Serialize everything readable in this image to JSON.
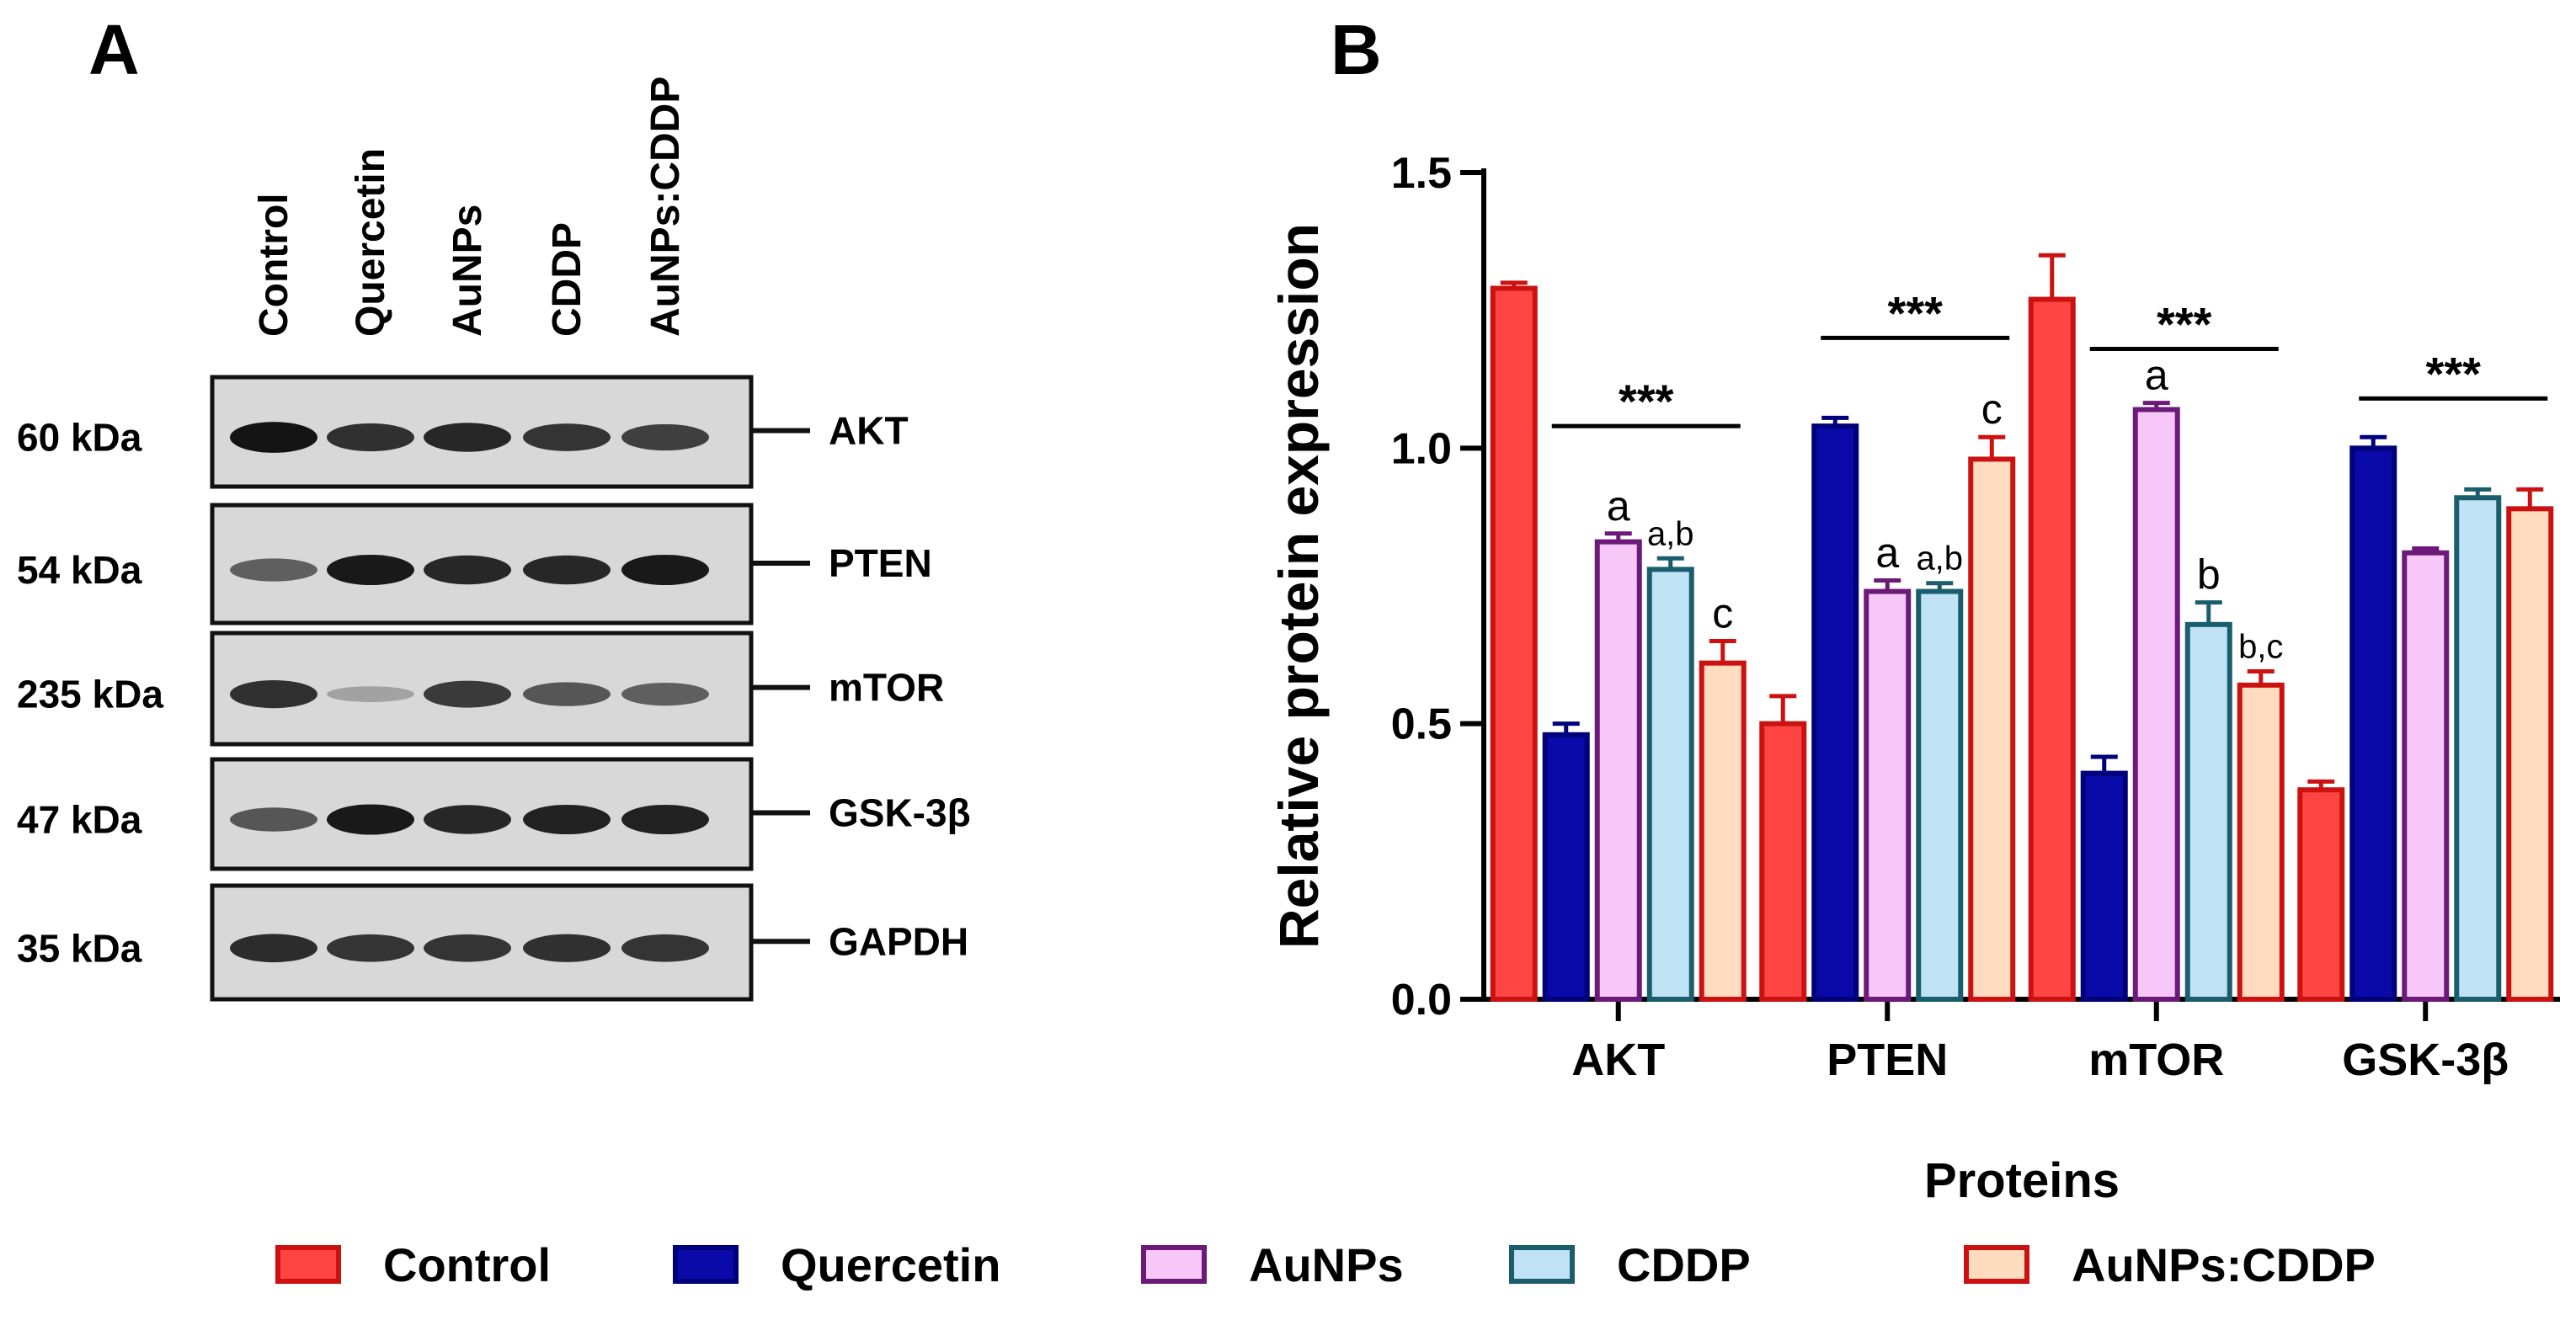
{
  "panels": {
    "a_label": "A",
    "b_label": "B"
  },
  "blot": {
    "lanes": [
      "Control",
      "Quercetin",
      "AuNPs",
      "CDDP",
      "AuNPs:CDDP"
    ],
    "rows": [
      {
        "kda": "60 kDa",
        "protein": "AKT",
        "band_strength": [
          0.95,
          0.8,
          0.85,
          0.78,
          0.72
        ]
      },
      {
        "kda": "54 kDa",
        "protein": "PTEN",
        "band_strength": [
          0.55,
          0.92,
          0.85,
          0.85,
          0.92
        ]
      },
      {
        "kda": "235 kDa",
        "protein": "mTOR",
        "band_strength": [
          0.8,
          0.2,
          0.75,
          0.6,
          0.55
        ]
      },
      {
        "kda": "47 kDa",
        "protein": "GSK-3β",
        "band_strength": [
          0.6,
          0.92,
          0.85,
          0.88,
          0.88
        ]
      },
      {
        "kda": "35 kDa",
        "protein": "GAPDH",
        "band_strength": [
          0.82,
          0.78,
          0.78,
          0.8,
          0.78
        ]
      }
    ]
  },
  "chart_data": {
    "type": "bar",
    "title": "",
    "xlabel": "Proteins",
    "ylabel": "Relative protein expression",
    "ylim": [
      0,
      1.5
    ],
    "yticks": [
      "0.0",
      "0.5",
      "1.0",
      "1.5"
    ],
    "ytick_values": [
      0,
      0.5,
      1.0,
      1.5
    ],
    "categories": [
      "AKT",
      "PTEN",
      "mTOR",
      "GSK-3β"
    ],
    "series": [
      {
        "name": "Control",
        "fill": "#ff4444",
        "stroke": "#cc1111",
        "values": [
          1.29,
          0.5,
          1.27,
          0.38
        ],
        "errors": [
          0.01,
          0.05,
          0.08,
          0.015
        ]
      },
      {
        "name": "Quercetin",
        "fill": "#0a0aa8",
        "stroke": "#00007a",
        "values": [
          0.48,
          1.04,
          0.41,
          1.0
        ],
        "errors": [
          0.02,
          0.015,
          0.03,
          0.02
        ]
      },
      {
        "name": "AuNPs",
        "fill": "#f7c8f7",
        "stroke": "#6b1a7a",
        "values": [
          0.83,
          0.74,
          1.07,
          0.81
        ],
        "errors": [
          0.015,
          0.02,
          0.012,
          0.008
        ]
      },
      {
        "name": "CDDP",
        "fill": "#bfe3f5",
        "stroke": "#1a5e6e",
        "values": [
          0.78,
          0.74,
          0.68,
          0.91
        ],
        "errors": [
          0.02,
          0.015,
          0.04,
          0.015
        ]
      },
      {
        "name": "AuNPs:CDDP",
        "fill": "#ffdcc0",
        "stroke": "#cc1111",
        "values": [
          0.61,
          0.98,
          0.57,
          0.89
        ],
        "errors": [
          0.04,
          0.04,
          0.025,
          0.035
        ]
      }
    ],
    "significance": [
      {
        "category": 0,
        "label": "***",
        "y": 1.04
      },
      {
        "category": 1,
        "label": "***",
        "y": 1.2
      },
      {
        "category": 2,
        "label": "***",
        "y": 1.18
      },
      {
        "category": 3,
        "label": "***",
        "y": 1.09
      }
    ],
    "letters": [
      {
        "category": 0,
        "series": 2,
        "label": "a"
      },
      {
        "category": 0,
        "series": 3,
        "label": "a,b"
      },
      {
        "category": 0,
        "series": 4,
        "label": "c"
      },
      {
        "category": 1,
        "series": 2,
        "label": "a"
      },
      {
        "category": 1,
        "series": 3,
        "label": "a,b"
      },
      {
        "category": 1,
        "series": 4,
        "label": "c"
      },
      {
        "category": 2,
        "series": 2,
        "label": "a"
      },
      {
        "category": 2,
        "series": 3,
        "label": "b"
      },
      {
        "category": 2,
        "series": 4,
        "label": "b,c"
      }
    ],
    "legend": {
      "placement": "bottom"
    }
  }
}
